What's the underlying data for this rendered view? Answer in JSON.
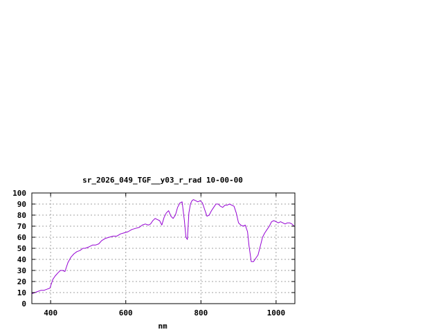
{
  "chart_data": {
    "type": "line",
    "title": "sr_2026_049_TGF__y03_r_rad 10-00-00",
    "xlabel": "nm",
    "ylabel": "",
    "xlim": [
      350,
      1050
    ],
    "ylim": [
      0,
      100
    ],
    "xticks": [
      400,
      600,
      800,
      1000
    ],
    "yticks": [
      0,
      10,
      20,
      30,
      40,
      50,
      60,
      70,
      80,
      90,
      100
    ],
    "grid": true,
    "legend": "none",
    "colors": {
      "line": "#9400d3",
      "grid": "#a0a0a0",
      "frame": "#000000"
    },
    "series": [
      {
        "x": [
          350,
          358,
          366,
          374,
          382,
          390,
          398,
          406,
          412,
          420,
          426,
          432,
          438,
          446,
          454,
          462,
          470,
          478,
          486,
          492,
          500,
          506,
          512,
          520,
          528,
          536,
          546,
          556,
          566,
          576,
          586,
          596,
          606,
          616,
          626,
          636,
          644,
          652,
          660,
          666,
          672,
          678,
          684,
          690,
          696,
          702,
          708,
          714,
          720,
          726,
          732,
          738,
          744,
          750,
          756,
          760,
          764,
          768,
          772,
          776,
          780,
          786,
          792,
          798,
          804,
          810,
          816,
          822,
          828,
          834,
          840,
          846,
          852,
          858,
          864,
          870,
          876,
          882,
          888,
          894,
          900,
          906,
          912,
          918,
          924,
          928,
          934,
          940,
          946,
          952,
          958,
          964,
          970,
          976,
          982,
          988,
          994,
          1000,
          1006,
          1012,
          1018,
          1024,
          1030,
          1036,
          1042,
          1048
        ],
        "y": [
          9,
          10,
          11,
          12,
          12,
          13,
          14,
          22,
          25,
          28,
          30,
          30,
          29,
          37,
          42,
          45,
          47,
          48,
          50,
          50,
          51,
          52,
          53,
          53,
          54,
          57,
          59,
          60,
          61,
          61,
          63,
          64,
          65,
          67,
          68,
          69,
          71,
          72,
          71,
          72,
          75,
          77,
          76,
          75,
          71,
          78,
          82,
          84,
          79,
          77,
          80,
          87,
          91,
          92,
          75,
          60,
          58,
          82,
          90,
          93,
          94,
          93,
          92,
          93,
          91,
          85,
          79,
          80,
          84,
          87,
          90,
          90,
          88,
          87,
          89,
          89,
          90,
          89,
          88,
          82,
          73,
          71,
          70,
          71,
          65,
          52,
          38,
          38,
          41,
          44,
          52,
          60,
          64,
          67,
          70,
          74,
          75,
          74,
          73,
          74,
          73,
          72,
          73,
          73,
          72,
          70
        ]
      }
    ]
  }
}
